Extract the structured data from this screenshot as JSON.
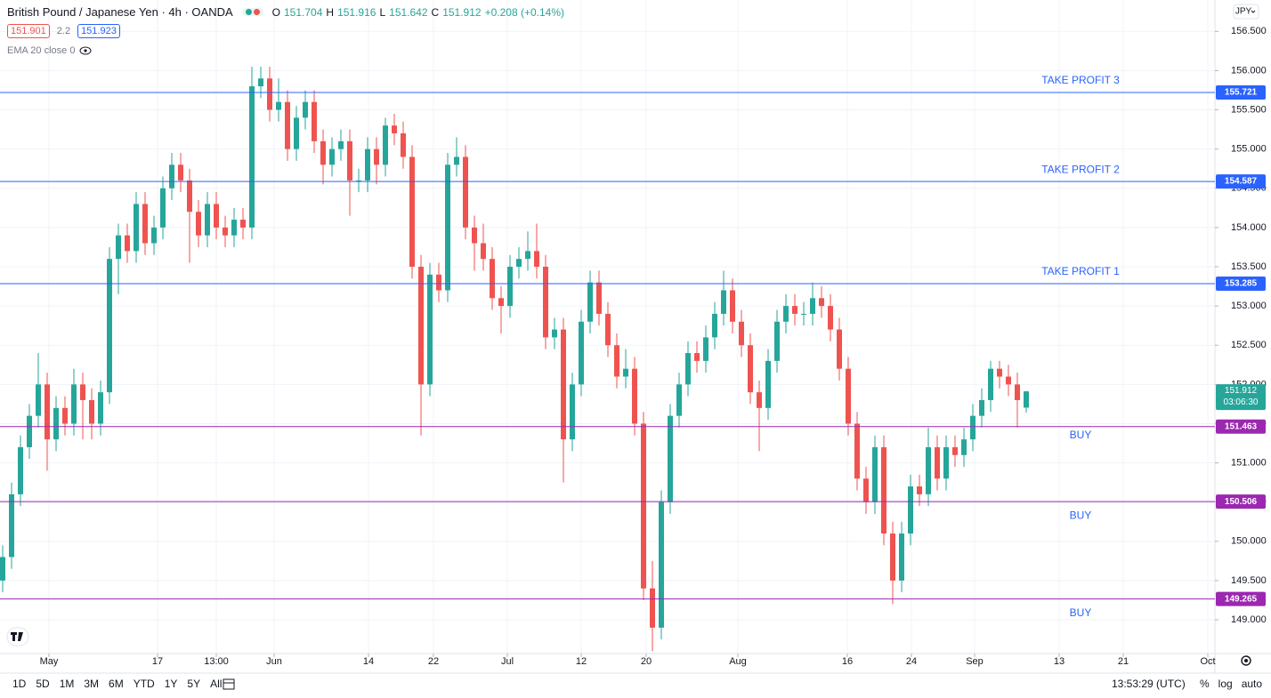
{
  "header": {
    "symbol": "British Pound / Japanese Yen · 4h · OANDA",
    "ohlc_labels": [
      "O",
      "H",
      "L",
      "C"
    ],
    "change": "+0.208 (+0.14%)",
    "bid": "151.901",
    "spread": "2.2",
    "ask": "151.923",
    "indicator": "EMA 20 close 0",
    "currency": "JPY"
  },
  "chart_data": {
    "type": "candlestick",
    "up_color": "#26a69a",
    "down_color": "#ef5350",
    "grid": true,
    "open": [
      149.5,
      149.8,
      150.6,
      151.2,
      151.6,
      152.0,
      151.3,
      151.7,
      151.5,
      152.0,
      151.8,
      151.5,
      151.9,
      153.6,
      153.9,
      153.7,
      154.3,
      153.8,
      154.0,
      154.5,
      154.8,
      154.6,
      154.2,
      153.9,
      154.3,
      154.0,
      153.9,
      154.1,
      154.0,
      155.8,
      155.9,
      155.5,
      155.6,
      155.0,
      155.4,
      155.6,
      155.1,
      154.8,
      155.0,
      155.1,
      154.6,
      154.6,
      155.0,
      154.8,
      155.3,
      155.2,
      154.9,
      153.5,
      152.0,
      153.4,
      153.2,
      154.8,
      154.9,
      154.0,
      153.8,
      153.6,
      153.1,
      153.0,
      153.5,
      153.6,
      153.7,
      153.5,
      152.6,
      152.7,
      151.3,
      152.0,
      152.8,
      153.3,
      152.9,
      152.5,
      152.1,
      152.2,
      151.5,
      149.4,
      148.9,
      150.5,
      151.6,
      152.0,
      152.4,
      152.3,
      152.6,
      152.9,
      153.2,
      152.8,
      152.5,
      151.9,
      151.7,
      152.3,
      152.8,
      153.0,
      152.9,
      152.9,
      153.1,
      153.0,
      152.7,
      152.2,
      151.5,
      150.8,
      150.5,
      151.2,
      150.1,
      149.5,
      150.1,
      150.7,
      150.6,
      151.2,
      150.8,
      151.2,
      151.1,
      151.3,
      151.6,
      151.8,
      152.2,
      152.1,
      152.0,
      151.704
    ],
    "high": [
      149.95,
      150.75,
      151.35,
      151.75,
      152.4,
      152.15,
      151.85,
      151.85,
      152.2,
      152.15,
      151.95,
      152.05,
      153.75,
      154.05,
      154.05,
      154.45,
      154.45,
      154.15,
      154.65,
      154.95,
      154.95,
      154.75,
      154.35,
      154.45,
      154.45,
      154.15,
      154.25,
      154.25,
      156.05,
      156.05,
      156.05,
      155.9,
      155.75,
      155.55,
      155.75,
      155.75,
      155.25,
      155.15,
      155.25,
      155.25,
      154.75,
      155.15,
      155.15,
      155.4,
      155.45,
      155.35,
      155.05,
      153.65,
      153.55,
      153.55,
      154.95,
      155.15,
      155.05,
      154.15,
      154.05,
      153.75,
      153.25,
      153.65,
      153.75,
      153.95,
      154.05,
      153.65,
      152.85,
      152.85,
      152.15,
      152.95,
      153.45,
      153.45,
      153.05,
      152.65,
      152.45,
      152.35,
      151.65,
      149.75,
      150.65,
      151.75,
      152.15,
      152.55,
      152.55,
      152.75,
      153.05,
      153.45,
      153.35,
      152.95,
      152.65,
      152.05,
      152.45,
      152.95,
      153.15,
      153.15,
      153.05,
      153.3,
      153.25,
      153.15,
      152.85,
      152.35,
      151.65,
      150.95,
      151.35,
      151.35,
      150.25,
      150.25,
      150.85,
      150.85,
      151.45,
      151.35,
      151.35,
      151.35,
      151.45,
      151.75,
      151.95,
      152.3,
      152.3,
      152.25,
      152.15,
      151.916
    ],
    "low": [
      149.35,
      149.65,
      150.45,
      151.05,
      151.45,
      150.9,
      151.15,
      151.35,
      151.35,
      151.3,
      151.3,
      151.35,
      151.75,
      153.15,
      153.55,
      153.55,
      153.65,
      153.65,
      153.85,
      154.35,
      154.45,
      153.55,
      153.75,
      153.75,
      153.85,
      153.75,
      153.75,
      153.85,
      153.85,
      155.65,
      155.35,
      155.35,
      154.85,
      154.85,
      155.25,
      154.95,
      154.55,
      154.65,
      154.85,
      154.15,
      154.45,
      154.45,
      154.55,
      154.65,
      155.05,
      154.75,
      153.35,
      151.35,
      151.85,
      153.05,
      153.05,
      154.65,
      153.85,
      153.45,
      153.45,
      152.95,
      152.65,
      152.85,
      153.35,
      153.45,
      153.35,
      152.45,
      152.45,
      150.75,
      151.15,
      151.85,
      152.65,
      152.75,
      152.35,
      151.95,
      151.95,
      151.35,
      149.25,
      148.6,
      148.75,
      150.35,
      151.45,
      151.85,
      152.15,
      152.15,
      152.45,
      152.75,
      152.65,
      152.35,
      151.75,
      151.15,
      151.55,
      152.15,
      152.65,
      152.75,
      152.75,
      152.75,
      152.85,
      152.55,
      152.05,
      151.35,
      150.65,
      150.35,
      150.35,
      149.95,
      149.2,
      149.35,
      149.95,
      150.45,
      150.45,
      150.65,
      150.65,
      150.95,
      150.95,
      151.15,
      151.45,
      151.65,
      151.95,
      151.85,
      151.45,
      151.642
    ],
    "close": [
      149.8,
      150.6,
      151.2,
      151.6,
      152.0,
      151.3,
      151.7,
      151.5,
      152.0,
      151.8,
      151.5,
      151.9,
      153.6,
      153.9,
      153.7,
      154.3,
      153.8,
      154.0,
      154.5,
      154.8,
      154.6,
      154.2,
      153.9,
      154.3,
      154.0,
      153.9,
      154.1,
      154.0,
      155.8,
      155.9,
      155.5,
      155.6,
      155.0,
      155.4,
      155.6,
      155.1,
      154.8,
      155.0,
      155.1,
      154.6,
      154.6,
      155.0,
      154.8,
      155.3,
      155.2,
      154.9,
      153.5,
      152.0,
      153.4,
      153.2,
      154.8,
      154.9,
      154.0,
      153.8,
      153.6,
      153.1,
      153.0,
      153.5,
      153.6,
      153.7,
      153.5,
      152.6,
      152.7,
      151.3,
      152.0,
      152.8,
      153.3,
      152.9,
      152.5,
      152.1,
      152.2,
      151.5,
      149.4,
      148.9,
      150.5,
      151.6,
      152.0,
      152.4,
      152.3,
      152.6,
      152.9,
      153.2,
      152.8,
      152.5,
      151.9,
      151.7,
      152.3,
      152.8,
      153.0,
      152.9,
      152.9,
      153.1,
      153.0,
      152.7,
      152.2,
      151.5,
      150.8,
      150.5,
      151.2,
      150.1,
      149.5,
      150.1,
      150.7,
      150.6,
      151.2,
      150.8,
      151.2,
      151.1,
      151.3,
      151.6,
      151.8,
      152.2,
      152.1,
      152.0,
      151.8,
      151.912
    ],
    "countdown": "03:06:30",
    "xlim": [
      -0.3,
      136.2
    ],
    "xticks": [
      {
        "value": 5.2,
        "label": "May"
      },
      {
        "value": 17.4,
        "label": "17"
      },
      {
        "value": 24.0,
        "label": "13:00"
      },
      {
        "value": 30.5,
        "label": "Jun"
      },
      {
        "value": 41.1,
        "label": "14"
      },
      {
        "value": 48.4,
        "label": "22"
      },
      {
        "value": 56.7,
        "label": "Jul"
      },
      {
        "value": 65.0,
        "label": "12"
      },
      {
        "value": 72.3,
        "label": "20"
      },
      {
        "value": 82.6,
        "label": "Aug"
      },
      {
        "value": 94.9,
        "label": "16"
      },
      {
        "value": 102.1,
        "label": "24"
      },
      {
        "value": 109.2,
        "label": "Sep"
      },
      {
        "value": 118.7,
        "label": "13"
      },
      {
        "value": 125.9,
        "label": "21"
      },
      {
        "value": 135.4,
        "label": "Oct"
      }
    ],
    "ylim": [
      148.57,
      156.9
    ],
    "yticks": [
      {
        "value": 149.0,
        "label": "149.000"
      },
      {
        "value": 149.5,
        "label": "149.500"
      },
      {
        "value": 150.0,
        "label": "150.000"
      },
      {
        "value": 150.5,
        "label": "150.500"
      },
      {
        "value": 151.0,
        "label": "151.000"
      },
      {
        "value": 151.5,
        "label": "151.500"
      },
      {
        "value": 152.0,
        "label": "152.000"
      },
      {
        "value": 152.5,
        "label": "152.500"
      },
      {
        "value": 153.0,
        "label": "153.000"
      },
      {
        "value": 153.5,
        "label": "153.500"
      },
      {
        "value": 154.0,
        "label": "154.000"
      },
      {
        "value": 154.5,
        "label": "154.500"
      },
      {
        "value": 155.0,
        "label": "155.000"
      },
      {
        "value": 155.5,
        "label": "155.500"
      },
      {
        "value": 156.0,
        "label": "156.000"
      },
      {
        "value": 156.5,
        "label": "156.500"
      }
    ],
    "levels": [
      {
        "price": 155.721,
        "label": "TAKE PROFIT 3",
        "color": "#2962ff"
      },
      {
        "price": 154.587,
        "label": "TAKE PROFIT 2",
        "color": "#2962ff"
      },
      {
        "price": 153.285,
        "label": "TAKE PROFIT 1",
        "color": "#2962ff"
      },
      {
        "price": 151.463,
        "label": "BUY",
        "color": "#9c27b0"
      },
      {
        "price": 150.506,
        "label": "BUY",
        "color": "#9c27b0"
      },
      {
        "price": 149.265,
        "label": "BUY",
        "color": "#9c27b0"
      }
    ]
  },
  "toolbar": {
    "ranges": [
      "1D",
      "5D",
      "1M",
      "3M",
      "6M",
      "YTD",
      "1Y",
      "5Y",
      "All"
    ],
    "time": "13:53:29 (UTC)",
    "options": [
      "%",
      "log",
      "auto"
    ]
  }
}
